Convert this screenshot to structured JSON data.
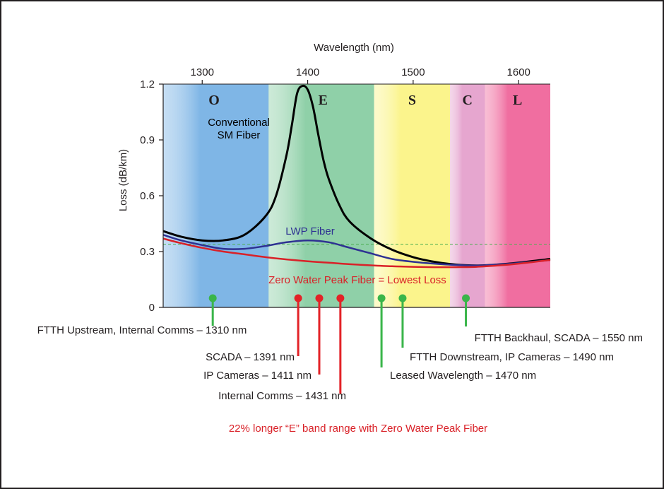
{
  "chart_data": {
    "type": "line",
    "xlabel": "Wavelength (nm)",
    "ylabel": "Loss (dB/km)",
    "xlim": [
      1263,
      1630
    ],
    "ylim": [
      0,
      1.2
    ],
    "x_ticks": [
      1300,
      1400,
      1500,
      1600
    ],
    "y_ticks": [
      {
        "value": 0,
        "label": "0"
      },
      {
        "value": 0.3,
        "label": "0.3"
      },
      {
        "value": 0.6,
        "label": "0.6"
      },
      {
        "value": 0.9,
        "label": "0.9"
      },
      {
        "value": 1.2,
        "label": "1.2"
      }
    ],
    "x_axis_position": "top",
    "bands": [
      {
        "label": "O",
        "start": 1263,
        "end": 1363,
        "color": "#7fb6e6"
      },
      {
        "label": "E",
        "start": 1363,
        "end": 1463,
        "color": "#8fd0a8"
      },
      {
        "label": "S",
        "start": 1463,
        "end": 1535,
        "color": "#fbf48c"
      },
      {
        "label": "C",
        "start": 1535,
        "end": 1568,
        "color": "#e6a6cf"
      },
      {
        "label": "L",
        "start": 1568,
        "end": 1630,
        "color": "#f06ea0"
      }
    ],
    "series": [
      {
        "name": "Conventional SM Fiber",
        "color": "#000000",
        "x": [
          1263,
          1280,
          1300,
          1320,
          1340,
          1360,
          1370,
          1380,
          1385,
          1390,
          1395,
          1400,
          1405,
          1410,
          1415,
          1420,
          1430,
          1440,
          1460,
          1480,
          1500,
          1520,
          1540,
          1560,
          1580,
          1600,
          1630
        ],
        "y": [
          0.41,
          0.38,
          0.36,
          0.36,
          0.39,
          0.49,
          0.6,
          0.82,
          0.98,
          1.15,
          1.19,
          1.17,
          1.08,
          0.93,
          0.79,
          0.69,
          0.55,
          0.46,
          0.37,
          0.31,
          0.27,
          0.245,
          0.23,
          0.225,
          0.23,
          0.24,
          0.26
        ]
      },
      {
        "name": "LWP Fiber",
        "color": "#2e3192",
        "x": [
          1263,
          1280,
          1300,
          1320,
          1340,
          1360,
          1380,
          1400,
          1420,
          1440,
          1460,
          1480,
          1500,
          1520,
          1540,
          1560,
          1580,
          1600,
          1630
        ],
        "y": [
          0.39,
          0.36,
          0.335,
          0.315,
          0.315,
          0.33,
          0.35,
          0.36,
          0.35,
          0.32,
          0.29,
          0.26,
          0.245,
          0.235,
          0.228,
          0.225,
          0.23,
          0.238,
          0.255
        ]
      },
      {
        "name": "Zero Water Peak Fiber = Lowest Loss",
        "color": "#d92128",
        "x": [
          1263,
          1280,
          1300,
          1320,
          1340,
          1360,
          1380,
          1400,
          1420,
          1440,
          1460,
          1480,
          1500,
          1520,
          1540,
          1560,
          1580,
          1600,
          1630
        ],
        "y": [
          0.37,
          0.345,
          0.32,
          0.3,
          0.285,
          0.27,
          0.258,
          0.248,
          0.24,
          0.232,
          0.226,
          0.221,
          0.218,
          0.216,
          0.216,
          0.218,
          0.225,
          0.235,
          0.255
        ]
      }
    ],
    "reference_line": {
      "y": 0.34,
      "color": "#4caf50",
      "style": "dashed"
    },
    "curve_labels": [
      {
        "lines": [
          "Conventional",
          "SM Fiber"
        ],
        "color": "#000000"
      },
      {
        "lines": [
          "LWP Fiber"
        ],
        "color": "#2e3192"
      },
      {
        "lines": [
          "Zero Water Peak Fiber = Lowest Loss"
        ],
        "color": "#d92128"
      }
    ],
    "wavelength_markers": [
      {
        "x": 1310,
        "label": "FTTH Upstream, Internal Comms – 1310 nm",
        "color": "#3ab54a"
      },
      {
        "x": 1391,
        "label": "SCADA – 1391 nm",
        "color": "#e32227"
      },
      {
        "x": 1411,
        "label": "IP Cameras – 1411 nm",
        "color": "#e32227"
      },
      {
        "x": 1431,
        "label": "Internal Comms – 1431 nm",
        "color": "#e32227"
      },
      {
        "x": 1470,
        "label": "Leased Wavelength – 1470 nm",
        "color": "#3ab54a"
      },
      {
        "x": 1490,
        "label": "FTTH Downstream, IP Cameras – 1490 nm",
        "color": "#3ab54a"
      },
      {
        "x": 1550,
        "label": "FTTH Backhaul, SCADA – 1550 nm",
        "color": "#3ab54a"
      }
    ],
    "footnote": "22% longer “E” band range with Zero Water Peak Fiber"
  }
}
